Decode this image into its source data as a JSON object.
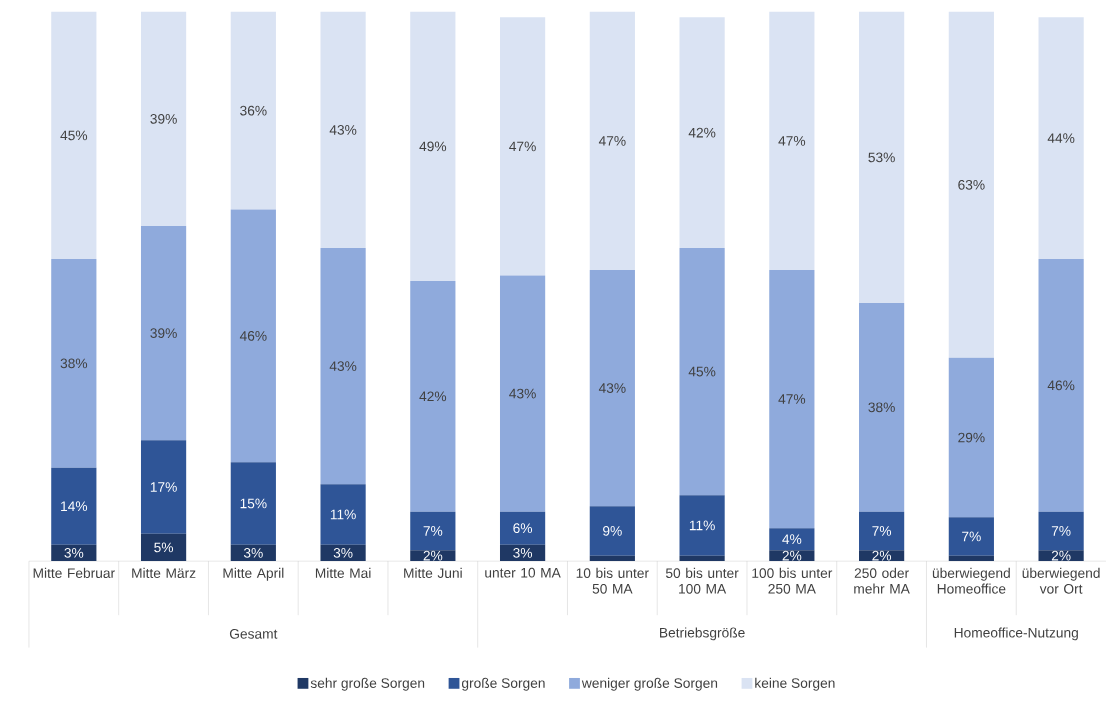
{
  "chart_data": {
    "type": "bar",
    "stacked": true,
    "legend": "bottom",
    "categories": [
      "Mitte Februar",
      "Mitte März",
      "Mitte April",
      "Mitte Mai",
      "Mitte Juni",
      "unter 10 MA",
      "10 bis unter 50 MA",
      "50 bis unter 100 MA",
      "100 bis unter 250 MA",
      "250 oder mehr MA",
      "überwiegend Homeoffice",
      "überwiegend vor Ort"
    ],
    "series": [
      {
        "name": "sehr große Sorgen",
        "color": "#1f3864",
        "values": [
          3,
          5,
          3,
          3,
          2,
          3,
          1,
          1,
          2,
          2,
          1,
          2
        ],
        "value_labels": [
          "3%",
          "5%",
          "3%",
          "3%",
          "2%",
          "3%",
          null,
          null,
          "2%",
          "2%",
          null,
          "2%"
        ]
      },
      {
        "name": "große Sorgen",
        "color": "#2f5597",
        "values": [
          14,
          17,
          15,
          11,
          7,
          6,
          9,
          11,
          4,
          7,
          7,
          7
        ],
        "value_labels": [
          "14%",
          "17%",
          "15%",
          "11%",
          "7%",
          "6%",
          "9%",
          "11%",
          "4%",
          "7%",
          "7%",
          "7%"
        ]
      },
      {
        "name": "weniger große Sorgen",
        "color": "#8faadc",
        "values": [
          38,
          39,
          46,
          43,
          42,
          43,
          43,
          45,
          47,
          38,
          29,
          46
        ],
        "value_labels": [
          "38%",
          "39%",
          "46%",
          "43%",
          "42%",
          "43%",
          "43%",
          "45%",
          "47%",
          "38%",
          "29%",
          "46%"
        ]
      },
      {
        "name": "keine Sorgen",
        "color": "#dae3f3",
        "values": [
          45,
          39,
          36,
          43,
          49,
          47,
          47,
          42,
          47,
          53,
          63,
          44
        ],
        "value_labels": [
          "45%",
          "39%",
          "36%",
          "43%",
          "49%",
          "47%",
          "47%",
          "42%",
          "47%",
          "53%",
          "63%",
          "44%"
        ]
      }
    ],
    "annotations": [
      "Gesamt",
      "Betriebsgröße",
      "Homeoffice-Nutzung"
    ]
  }
}
